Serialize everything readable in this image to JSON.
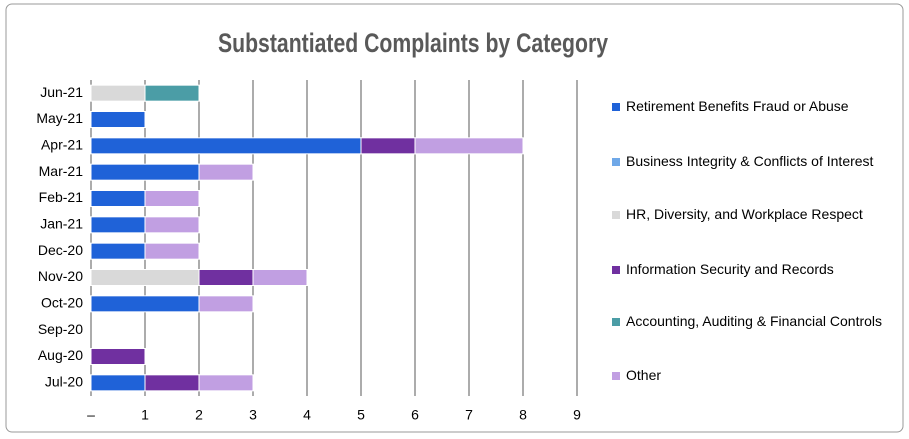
{
  "chart_data": {
    "type": "hbar_stacked",
    "title": "Substantiated Complaints by Category",
    "categories": [
      "Jun-21",
      "May-21",
      "Apr-21",
      "Mar-21",
      "Feb-21",
      "Jan-21",
      "Dec-20",
      "Nov-20",
      "Oct-20",
      "Sep-20",
      "Aug-20",
      "Jul-20"
    ],
    "series": [
      {
        "name": "Retirement Benefits Fraud or Abuse",
        "color": "#1f62d8",
        "values": [
          0,
          1,
          5,
          2,
          1,
          1,
          1,
          0,
          2,
          0,
          0,
          1
        ]
      },
      {
        "name": "Business Integrity & Conflicts of Interest",
        "color": "#6fa8e8",
        "values": [
          0,
          0,
          0,
          0,
          0,
          0,
          0,
          0,
          0,
          0,
          0,
          0
        ]
      },
      {
        "name": "HR, Diversity, and Workplace Respect",
        "color": "#d9d9d9",
        "values": [
          1,
          0,
          0,
          0,
          0,
          0,
          0,
          2,
          0,
          0,
          0,
          0
        ]
      },
      {
        "name": "Information Security and Records",
        "color": "#7030a0",
        "values": [
          0,
          0,
          1,
          0,
          0,
          0,
          0,
          1,
          0,
          0,
          1,
          1
        ]
      },
      {
        "name": "Accounting, Auditing & Financial Controls",
        "color": "#4b9da6",
        "values": [
          1,
          0,
          0,
          0,
          0,
          0,
          0,
          0,
          0,
          0,
          0,
          0
        ]
      },
      {
        "name": "Other",
        "color": "#c19fe2",
        "values": [
          0,
          0,
          2,
          1,
          1,
          1,
          1,
          1,
          1,
          0,
          0,
          1
        ]
      }
    ],
    "xlim": [
      0,
      9
    ],
    "xticks": [
      {
        "value": 0,
        "label": "–"
      },
      1,
      2,
      3,
      4,
      5,
      6,
      7,
      8,
      9
    ],
    "grid": true,
    "legend": "right"
  }
}
